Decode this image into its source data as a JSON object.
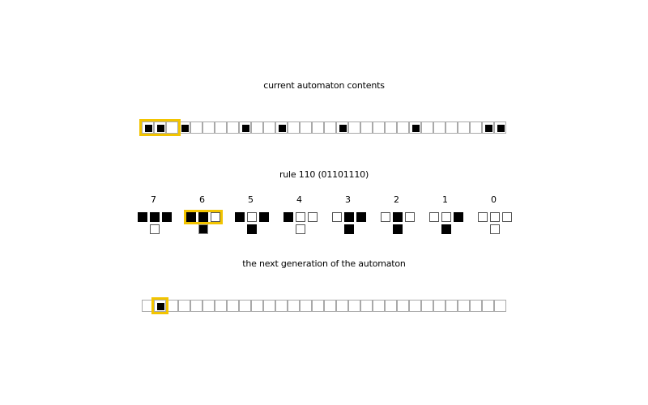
{
  "labels": {
    "current": "current automaton contents",
    "rule": "rule 110 (01101110)",
    "next": "the next generation of the automaton"
  },
  "colors": {
    "highlight": "#f2c400",
    "filled": "#000000",
    "cell_border": "#a9a9a9"
  },
  "current_cells": [
    1,
    1,
    0,
    1,
    0,
    0,
    0,
    0,
    1,
    0,
    0,
    1,
    0,
    0,
    0,
    0,
    1,
    0,
    0,
    0,
    0,
    0,
    1,
    0,
    0,
    0,
    0,
    0,
    1,
    1
  ],
  "current_highlight_start": 0,
  "current_highlight_length": 3,
  "next_cells": [
    0,
    1,
    0,
    0,
    0,
    0,
    0,
    0,
    0,
    0,
    0,
    0,
    0,
    0,
    0,
    0,
    0,
    0,
    0,
    0,
    0,
    0,
    0,
    0,
    0,
    0,
    0,
    0,
    0,
    0
  ],
  "next_highlight_index": 1,
  "rules": [
    {
      "num": "7",
      "pattern": [
        1,
        1,
        1
      ],
      "output": 0
    },
    {
      "num": "6",
      "pattern": [
        1,
        1,
        0
      ],
      "output": 1
    },
    {
      "num": "5",
      "pattern": [
        1,
        0,
        1
      ],
      "output": 1
    },
    {
      "num": "4",
      "pattern": [
        1,
        0,
        0
      ],
      "output": 0
    },
    {
      "num": "3",
      "pattern": [
        0,
        1,
        1
      ],
      "output": 1
    },
    {
      "num": "2",
      "pattern": [
        0,
        1,
        0
      ],
      "output": 1
    },
    {
      "num": "1",
      "pattern": [
        0,
        0,
        1
      ],
      "output": 1
    },
    {
      "num": "0",
      "pattern": [
        0,
        0,
        0
      ],
      "output": 0
    }
  ],
  "active_rule": "6"
}
